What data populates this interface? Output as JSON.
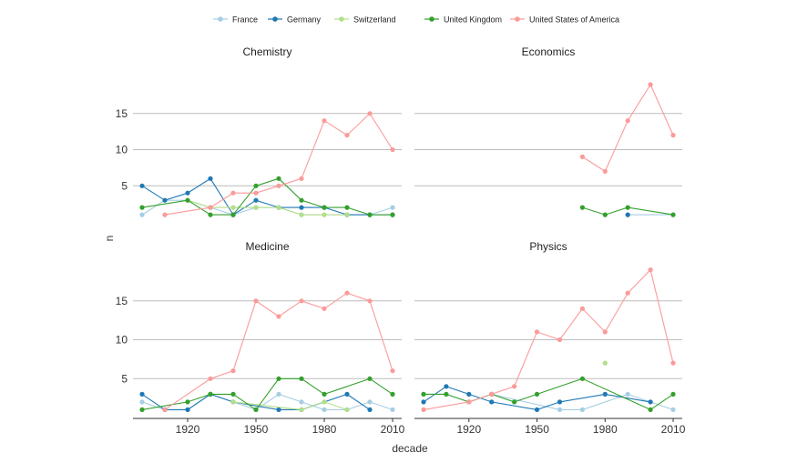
{
  "chart_data": {
    "type": "line",
    "xlabel": "decade",
    "ylabel": "n",
    "xticks": [
      1920,
      1950,
      1980,
      2010
    ],
    "yticks": [
      5,
      10,
      15
    ],
    "xlim": [
      1896,
      2014
    ],
    "ylim": [
      0,
      20
    ],
    "legend_position": "top",
    "legend": [
      {
        "name": "France",
        "color": "#a6cee3"
      },
      {
        "name": "Germany",
        "color": "#1f78b4"
      },
      {
        "name": "Switzerland",
        "color": "#b2df8a"
      },
      {
        "name": "United Kingdom",
        "color": "#33a02c"
      },
      {
        "name": "United States of America",
        "color": "#fb9a99"
      }
    ],
    "panels": [
      {
        "title": "Chemistry",
        "series": [
          {
            "name": "France",
            "color": "#a6cee3",
            "points": [
              [
                1900,
                1
              ],
              [
                1910,
                3
              ],
              [
                1920,
                3
              ],
              [
                1930,
                2
              ],
              [
                1940,
                1
              ],
              [
                1950,
                2
              ],
              [
                1960,
                2
              ],
              [
                1970,
                1
              ],
              [
                1980,
                1
              ],
              [
                1990,
                1
              ],
              [
                2000,
                1
              ],
              [
                2010,
                2
              ]
            ]
          },
          {
            "name": "Germany",
            "color": "#1f78b4",
            "points": [
              [
                1900,
                5
              ],
              [
                1910,
                3
              ],
              [
                1920,
                4
              ],
              [
                1930,
                6
              ],
              [
                1940,
                1
              ],
              [
                1950,
                3
              ],
              [
                1960,
                2
              ],
              [
                1970,
                2
              ],
              [
                1980,
                2
              ],
              [
                1990,
                1
              ],
              [
                2000,
                1
              ],
              [
                2010,
                1
              ]
            ]
          },
          {
            "name": "Switzerland",
            "color": "#b2df8a",
            "points": [
              [
                1920,
                3
              ],
              [
                1930,
                2
              ],
              [
                1940,
                2
              ],
              [
                1950,
                2
              ],
              [
                1960,
                2
              ],
              [
                1970,
                1
              ],
              [
                1980,
                1
              ],
              [
                1990,
                1
              ]
            ]
          },
          {
            "name": "United Kingdom",
            "color": "#33a02c",
            "points": [
              [
                1900,
                2
              ],
              [
                1920,
                3
              ],
              [
                1930,
                1
              ],
              [
                1940,
                1
              ],
              [
                1950,
                5
              ],
              [
                1960,
                6
              ],
              [
                1970,
                3
              ],
              [
                1980,
                2
              ],
              [
                1990,
                2
              ],
              [
                2000,
                1
              ],
              [
                2010,
                1
              ]
            ]
          },
          {
            "name": "United States of America",
            "color": "#fb9a99",
            "points": [
              [
                1910,
                1
              ],
              [
                1930,
                2
              ],
              [
                1940,
                4
              ],
              [
                1950,
                4
              ],
              [
                1960,
                5
              ],
              [
                1970,
                6
              ],
              [
                1980,
                14
              ],
              [
                1990,
                12
              ],
              [
                2000,
                15
              ],
              [
                2010,
                10
              ]
            ]
          }
        ]
      },
      {
        "title": "Economics",
        "series": [
          {
            "name": "France",
            "color": "#a6cee3",
            "points": [
              [
                1990,
                1
              ],
              [
                2010,
                1
              ]
            ]
          },
          {
            "name": "Germany",
            "color": "#1f78b4",
            "points": [
              [
                1990,
                1
              ]
            ]
          },
          {
            "name": "United Kingdom",
            "color": "#33a02c",
            "points": [
              [
                1970,
                2
              ],
              [
                1980,
                1
              ],
              [
                1990,
                2
              ],
              [
                2010,
                1
              ]
            ]
          },
          {
            "name": "United States of America",
            "color": "#fb9a99",
            "points": [
              [
                1970,
                9
              ],
              [
                1980,
                7
              ],
              [
                1990,
                14
              ],
              [
                2000,
                19
              ],
              [
                2010,
                12
              ]
            ]
          }
        ]
      },
      {
        "title": "Medicine",
        "series": [
          {
            "name": "France",
            "color": "#a6cee3",
            "points": [
              [
                1900,
                2
              ],
              [
                1910,
                1
              ],
              [
                1920,
                1
              ],
              [
                1930,
                3
              ],
              [
                1940,
                2
              ],
              [
                1950,
                1
              ],
              [
                1960,
                3
              ],
              [
                1970,
                2
              ],
              [
                1980,
                1
              ],
              [
                1990,
                1
              ],
              [
                2000,
                2
              ],
              [
                2010,
                1
              ]
            ]
          },
          {
            "name": "Germany",
            "color": "#1f78b4",
            "points": [
              [
                1900,
                3
              ],
              [
                1910,
                1
              ],
              [
                1920,
                1
              ],
              [
                1930,
                3
              ],
              [
                1940,
                2
              ],
              [
                1960,
                1
              ],
              [
                1970,
                1
              ],
              [
                1990,
                3
              ],
              [
                2000,
                1
              ]
            ]
          },
          {
            "name": "Switzerland",
            "color": "#b2df8a",
            "points": [
              [
                1940,
                2
              ],
              [
                1970,
                1
              ],
              [
                1980,
                2
              ],
              [
                1990,
                1
              ]
            ]
          },
          {
            "name": "United Kingdom",
            "color": "#33a02c",
            "points": [
              [
                1900,
                1
              ],
              [
                1920,
                2
              ],
              [
                1930,
                3
              ],
              [
                1940,
                3
              ],
              [
                1950,
                1
              ],
              [
                1960,
                5
              ],
              [
                1970,
                5
              ],
              [
                1980,
                3
              ],
              [
                2000,
                5
              ],
              [
                2010,
                3
              ]
            ]
          },
          {
            "name": "United States of America",
            "color": "#fb9a99",
            "points": [
              [
                1910,
                1
              ],
              [
                1930,
                5
              ],
              [
                1940,
                6
              ],
              [
                1950,
                15
              ],
              [
                1960,
                13
              ],
              [
                1970,
                15
              ],
              [
                1980,
                14
              ],
              [
                1990,
                16
              ],
              [
                2000,
                15
              ],
              [
                2010,
                6
              ]
            ]
          }
        ]
      },
      {
        "title": "Physics",
        "series": [
          {
            "name": "France",
            "color": "#a6cee3",
            "points": [
              [
                1900,
                3
              ],
              [
                1910,
                3
              ],
              [
                1920,
                2
              ],
              [
                1930,
                3
              ],
              [
                1960,
                1
              ],
              [
                1970,
                1
              ],
              [
                1990,
                3
              ],
              [
                2010,
                1
              ]
            ]
          },
          {
            "name": "Germany",
            "color": "#1f78b4",
            "points": [
              [
                1900,
                2
              ],
              [
                1910,
                4
              ],
              [
                1920,
                3
              ],
              [
                1930,
                2
              ],
              [
                1950,
                1
              ],
              [
                1960,
                2
              ],
              [
                1980,
                3
              ],
              [
                2000,
                2
              ]
            ]
          },
          {
            "name": "Switzerland",
            "color": "#b2df8a",
            "points": [
              [
                1980,
                7
              ]
            ]
          },
          {
            "name": "United Kingdom",
            "color": "#33a02c",
            "points": [
              [
                1900,
                3
              ],
              [
                1910,
                3
              ],
              [
                1920,
                2
              ],
              [
                1930,
                3
              ],
              [
                1940,
                2
              ],
              [
                1950,
                3
              ],
              [
                1970,
                5
              ],
              [
                2000,
                1
              ],
              [
                2010,
                3
              ]
            ]
          },
          {
            "name": "United States of America",
            "color": "#fb9a99",
            "points": [
              [
                1900,
                1
              ],
              [
                1920,
                2
              ],
              [
                1930,
                3
              ],
              [
                1940,
                4
              ],
              [
                1950,
                11
              ],
              [
                1960,
                10
              ],
              [
                1970,
                14
              ],
              [
                1980,
                11
              ],
              [
                1990,
                16
              ],
              [
                2000,
                19
              ],
              [
                2010,
                7
              ]
            ]
          }
        ]
      }
    ]
  }
}
